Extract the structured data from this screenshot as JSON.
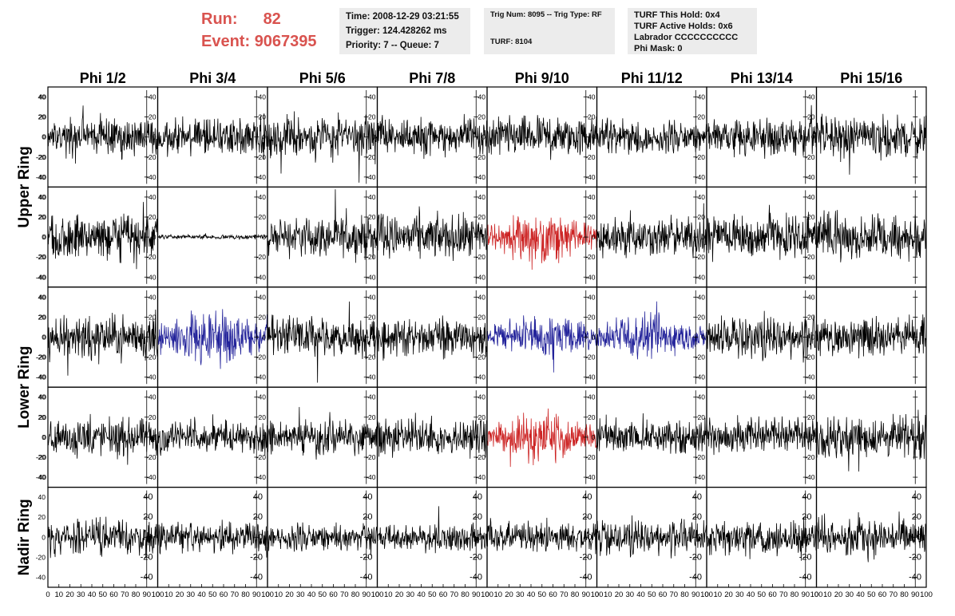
{
  "header": {
    "run_label": "Run:",
    "run_value": "82",
    "event_label": "Event:",
    "event_value": "9067395"
  },
  "info_time": {
    "time": "Time: 2008-12-29 03:21:55",
    "trigger": "Trigger: 124.428262 ms",
    "priority": "Priority: 7 -- Queue: 7"
  },
  "info_trig": {
    "trig": "Trig Num: 8095 -- Trig Type: RF",
    "turf": "TURF: 8104"
  },
  "info_turf": {
    "hold": "TURF This Hold: 0x4",
    "active": "TURF Active Holds: 0x6",
    "labrador": "Labrador CCCCCCCCCC",
    "phimask": "Phi Mask: 0"
  },
  "colors": {
    "normal": "#000000",
    "red": "#cc2222",
    "blue": "#22229a",
    "title_red": "#d9534f"
  },
  "chart_data": {
    "type": "line",
    "columns": [
      "Phi 1/2",
      "Phi 3/4",
      "Phi 5/6",
      "Phi 7/8",
      "Phi 9/10",
      "Phi 11/12",
      "Phi 13/14",
      "Phi 15/16"
    ],
    "ring_labels": [
      {
        "label": "Upper Ring",
        "rows": [
          0,
          1
        ]
      },
      {
        "label": "Lower Ring",
        "rows": [
          2,
          3
        ]
      },
      {
        "label": "Nadir Ring",
        "rows": [
          4
        ]
      }
    ],
    "xlim": [
      0,
      100
    ],
    "ylim": [
      -50,
      50
    ],
    "xticks": [
      0,
      10,
      20,
      30,
      40,
      50,
      60,
      70,
      80,
      90,
      100
    ],
    "yticks": [
      -40,
      -20,
      0,
      20,
      40
    ],
    "samples": 260,
    "grid": false,
    "panels": [
      {
        "row": 0,
        "col": 0,
        "color": "normal",
        "amp": 17,
        "seed": 11
      },
      {
        "row": 0,
        "col": 1,
        "color": "normal",
        "amp": 17,
        "seed": 12
      },
      {
        "row": 0,
        "col": 2,
        "color": "normal",
        "amp": 19,
        "seed": 13
      },
      {
        "row": 0,
        "col": 3,
        "color": "normal",
        "amp": 16,
        "seed": 14
      },
      {
        "row": 0,
        "col": 4,
        "color": "normal",
        "amp": 18,
        "seed": 15
      },
      {
        "row": 0,
        "col": 5,
        "color": "normal",
        "amp": 15,
        "seed": 16
      },
      {
        "row": 0,
        "col": 6,
        "color": "normal",
        "amp": 17,
        "seed": 17
      },
      {
        "row": 0,
        "col": 7,
        "color": "normal",
        "amp": 19,
        "seed": 18
      },
      {
        "row": 1,
        "col": 0,
        "color": "normal",
        "amp": 20,
        "seed": 21
      },
      {
        "row": 1,
        "col": 1,
        "color": "normal",
        "amp": 2,
        "seed": 22
      },
      {
        "row": 1,
        "col": 2,
        "color": "normal",
        "amp": 18,
        "seed": 23
      },
      {
        "row": 1,
        "col": 3,
        "color": "normal",
        "amp": 19,
        "seed": 24
      },
      {
        "row": 1,
        "col": 4,
        "color": "red",
        "amp": 20,
        "seed": 25
      },
      {
        "row": 1,
        "col": 5,
        "color": "normal",
        "amp": 17,
        "seed": 26
      },
      {
        "row": 1,
        "col": 6,
        "color": "normal",
        "amp": 18,
        "seed": 27
      },
      {
        "row": 1,
        "col": 7,
        "color": "normal",
        "amp": 20,
        "seed": 28
      },
      {
        "row": 2,
        "col": 0,
        "color": "normal",
        "amp": 19,
        "seed": 31
      },
      {
        "row": 2,
        "col": 1,
        "color": "blue",
        "amp": 22,
        "seed": 32
      },
      {
        "row": 2,
        "col": 2,
        "color": "normal",
        "amp": 18,
        "seed": 33
      },
      {
        "row": 2,
        "col": 3,
        "color": "normal",
        "amp": 17,
        "seed": 34
      },
      {
        "row": 2,
        "col": 4,
        "color": "blue",
        "amp": 17,
        "seed": 35
      },
      {
        "row": 2,
        "col": 5,
        "color": "blue",
        "amp": 17,
        "seed": 36
      },
      {
        "row": 2,
        "col": 6,
        "color": "normal",
        "amp": 18,
        "seed": 37
      },
      {
        "row": 2,
        "col": 7,
        "color": "normal",
        "amp": 17,
        "seed": 38
      },
      {
        "row": 3,
        "col": 0,
        "color": "normal",
        "amp": 16,
        "seed": 41
      },
      {
        "row": 3,
        "col": 1,
        "color": "normal",
        "amp": 14,
        "seed": 42
      },
      {
        "row": 3,
        "col": 2,
        "color": "normal",
        "amp": 15,
        "seed": 43
      },
      {
        "row": 3,
        "col": 3,
        "color": "normal",
        "amp": 16,
        "seed": 44
      },
      {
        "row": 3,
        "col": 4,
        "color": "red",
        "amp": 19,
        "seed": 45
      },
      {
        "row": 3,
        "col": 5,
        "color": "normal",
        "amp": 15,
        "seed": 46
      },
      {
        "row": 3,
        "col": 6,
        "color": "normal",
        "amp": 16,
        "seed": 47
      },
      {
        "row": 3,
        "col": 7,
        "color": "normal",
        "amp": 18,
        "seed": 48
      },
      {
        "row": 4,
        "col": 0,
        "color": "normal",
        "amp": 15,
        "seed": 51
      },
      {
        "row": 4,
        "col": 1,
        "color": "normal",
        "amp": 13,
        "seed": 52
      },
      {
        "row": 4,
        "col": 2,
        "color": "normal",
        "amp": 13,
        "seed": 53
      },
      {
        "row": 4,
        "col": 3,
        "color": "normal",
        "amp": 12,
        "seed": 54
      },
      {
        "row": 4,
        "col": 4,
        "color": "normal",
        "amp": 13,
        "seed": 55
      },
      {
        "row": 4,
        "col": 5,
        "color": "normal",
        "amp": 15,
        "seed": 56
      },
      {
        "row": 4,
        "col": 6,
        "color": "normal",
        "amp": 14,
        "seed": 57
      },
      {
        "row": 4,
        "col": 7,
        "color": "normal",
        "amp": 17,
        "seed": 58
      }
    ]
  }
}
